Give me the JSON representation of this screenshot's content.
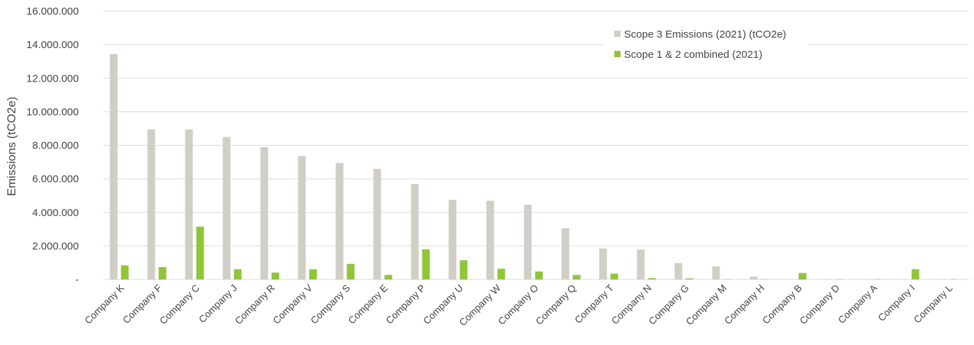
{
  "chart_data": {
    "type": "bar",
    "title": "",
    "xlabel": "",
    "ylabel": "Emissions (tCO2e)",
    "ylim": [
      0,
      16000000
    ],
    "yticks": [
      0,
      2000000,
      4000000,
      6000000,
      8000000,
      10000000,
      12000000,
      14000000,
      16000000
    ],
    "ytick_labels": [
      "-",
      "2.000.000",
      "4.000.000",
      "6.000.000",
      "8.000.000",
      "10.000.000",
      "12.000.000",
      "14.000.000",
      "16.000.000"
    ],
    "grid": true,
    "legend_position": "top-right",
    "categories": [
      "Company K",
      "Company F",
      "Company C",
      "Company J",
      "Company R",
      "Company V",
      "Company S",
      "Company E",
      "Company P",
      "Company U",
      "Company W",
      "Company O",
      "Company Q",
      "Company T",
      "Company N",
      "Company G",
      "Company M",
      "Company H",
      "Company B",
      "Company D",
      "Company A",
      "Company I",
      "Company L"
    ],
    "series": [
      {
        "name": "Scope 3 Emissions (2021) (tCO2e)",
        "color": "#d0cec6",
        "values": [
          13450000,
          8950000,
          8950000,
          8500000,
          7900000,
          7350000,
          6950000,
          6600000,
          5700000,
          4750000,
          4700000,
          4450000,
          3050000,
          1850000,
          1780000,
          980000,
          780000,
          170000,
          20000,
          30000,
          30000,
          20000,
          30000
        ]
      },
      {
        "name": "Scope 1 & 2 combined (2021)",
        "color": "#8fc638",
        "values": [
          840000,
          740000,
          3150000,
          610000,
          410000,
          610000,
          930000,
          270000,
          1800000,
          1150000,
          640000,
          480000,
          270000,
          350000,
          80000,
          60000,
          20000,
          20000,
          390000,
          10000,
          10000,
          610000,
          10000
        ]
      }
    ]
  }
}
